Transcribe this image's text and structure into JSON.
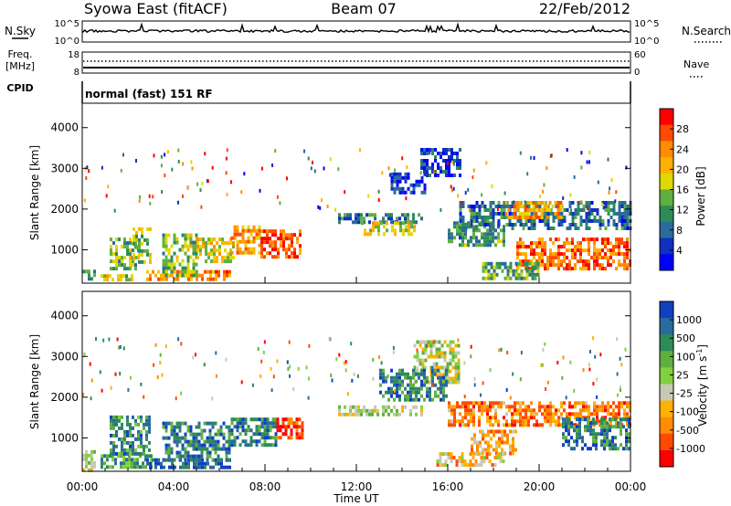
{
  "header": {
    "station": "Syowa East (fitACF)",
    "beam": "Beam 07",
    "date": "22/Feb/2012"
  },
  "noise_panel": {
    "left_label": "N.Sky",
    "left_ticks": [
      "10^5",
      "10^0"
    ],
    "right_label": "N.Search",
    "right_ticks": [
      "10^5",
      "10^0"
    ]
  },
  "freq_panel": {
    "left_label": "Freq.",
    "left_unit": "[MHz]",
    "left_ticks": [
      "18",
      "8"
    ],
    "right_label": "Nave",
    "right_ticks": [
      "60",
      "0"
    ]
  },
  "cpid_panel": {
    "label": "CPID",
    "value": "normal (fast) 151 RF"
  },
  "chart_data": [
    {
      "type": "heatmap",
      "parameter": "power",
      "ylabel": "Slant Range [km]",
      "yticks": [
        1000,
        2000,
        3000,
        4000
      ],
      "ylim": [
        180,
        4600
      ],
      "xlim": [
        0,
        24
      ],
      "colorbar": {
        "label": "Power [dB]",
        "ticks": [
          "28",
          "24",
          "20",
          "16",
          "12",
          "8",
          "4"
        ],
        "colors": [
          "#ff0000",
          "#ff4b00",
          "#ff8c00",
          "#ffb000",
          "#e0d800",
          "#60b040",
          "#2e8b57",
          "#2a6a9c",
          "#1030c0",
          "#0000ff"
        ]
      },
      "echo_regions": [
        {
          "t": [
            0.0,
            0.6
          ],
          "r": [
            250,
            600
          ],
          "level": 0.35
        },
        {
          "t": [
            0.8,
            2.2
          ],
          "r": [
            250,
            400
          ],
          "level": 0.55
        },
        {
          "t": [
            1.2,
            2.5
          ],
          "r": [
            500,
            1300
          ],
          "level": 0.45
        },
        {
          "t": [
            2.2,
            3.0
          ],
          "r": [
            700,
            1550
          ],
          "level": 0.5
        },
        {
          "t": [
            2.8,
            6.5
          ],
          "r": [
            250,
            500
          ],
          "level": 0.75
        },
        {
          "t": [
            3.5,
            5.0
          ],
          "r": [
            400,
            1400
          ],
          "level": 0.45
        },
        {
          "t": [
            5.0,
            6.6
          ],
          "r": [
            700,
            1300
          ],
          "level": 0.6
        },
        {
          "t": [
            6.5,
            7.8
          ],
          "r": [
            900,
            1600
          ],
          "level": 0.7
        },
        {
          "t": [
            7.8,
            9.6
          ],
          "r": [
            800,
            1500
          ],
          "level": 0.85
        },
        {
          "t": [
            11.2,
            14.8
          ],
          "r": [
            1650,
            1900
          ],
          "level": 0.3
        },
        {
          "t": [
            12.2,
            14.5
          ],
          "r": [
            1400,
            1700
          ],
          "level": 0.55
        },
        {
          "t": [
            13.5,
            15.0
          ],
          "r": [
            2400,
            2900
          ],
          "level": 0.15
        },
        {
          "t": [
            14.8,
            16.5
          ],
          "r": [
            2800,
            3500
          ],
          "level": 0.15
        },
        {
          "t": [
            16.0,
            18.5
          ],
          "r": [
            1100,
            1700
          ],
          "level": 0.35
        },
        {
          "t": [
            16.5,
            24.0
          ],
          "r": [
            1500,
            2200
          ],
          "level": 0.25
        },
        {
          "t": [
            18.5,
            21.0
          ],
          "r": [
            1800,
            2200
          ],
          "level": 0.7
        },
        {
          "t": [
            19.0,
            24.0
          ],
          "r": [
            550,
            1300
          ],
          "level": 0.8
        },
        {
          "t": [
            17.5,
            20.0
          ],
          "r": [
            300,
            700
          ],
          "level": 0.4
        }
      ]
    },
    {
      "type": "heatmap",
      "parameter": "velocity",
      "ylabel": "Slant Range [km]",
      "yticks": [
        1000,
        2000,
        3000,
        4000
      ],
      "ylim": [
        180,
        4600
      ],
      "xlim": [
        0,
        24
      ],
      "xticks": [
        "00:00",
        "04:00",
        "08:00",
        "12:00",
        "16:00",
        "20:00",
        "00:00"
      ],
      "xlabel": "Time UT",
      "colorbar": {
        "label": "Velocity [m s",
        "label_exp": "-1",
        "label_end": "]",
        "ticks": [
          "1000",
          "500",
          "100",
          "25",
          "-25",
          "-100",
          "-500",
          "-1000"
        ],
        "colors": [
          "#1040c0",
          "#2a6a9c",
          "#2e8b57",
          "#60b040",
          "#80d040",
          "#c8c8b4",
          "#ffb000",
          "#ff8c00",
          "#ff4b00",
          "#ff0000"
        ]
      },
      "echo_regions": [
        {
          "t": [
            0.0,
            0.6
          ],
          "r": [
            250,
            700
          ],
          "level": 0.55
        },
        {
          "t": [
            0.8,
            3.0
          ],
          "r": [
            250,
            600
          ],
          "level": 0.7
        },
        {
          "t": [
            1.2,
            3.0
          ],
          "r": [
            600,
            1550
          ],
          "level": 0.75
        },
        {
          "t": [
            2.8,
            6.5
          ],
          "r": [
            250,
            500
          ],
          "level": 0.9
        },
        {
          "t": [
            3.5,
            6.5
          ],
          "r": [
            500,
            1400
          ],
          "level": 0.8
        },
        {
          "t": [
            6.5,
            8.5
          ],
          "r": [
            800,
            1500
          ],
          "level": 0.78
        },
        {
          "t": [
            8.5,
            9.6
          ],
          "r": [
            1000,
            1500
          ],
          "level": 0.1
        },
        {
          "t": [
            11.2,
            14.8
          ],
          "r": [
            1550,
            1800
          ],
          "level": 0.5
        },
        {
          "t": [
            14.5,
            16.5
          ],
          "r": [
            2400,
            3400
          ],
          "level": 0.5
        },
        {
          "t": [
            13.0,
            16.0
          ],
          "r": [
            1900,
            2700
          ],
          "level": 0.78
        },
        {
          "t": [
            16.0,
            24.0
          ],
          "r": [
            1300,
            1900
          ],
          "level": 0.25
        },
        {
          "t": [
            17.0,
            19.0
          ],
          "r": [
            600,
            1200
          ],
          "level": 0.3
        },
        {
          "t": [
            15.5,
            18.5
          ],
          "r": [
            350,
            650
          ],
          "level": 0.35
        },
        {
          "t": [
            21.0,
            24.0
          ],
          "r": [
            700,
            1500
          ],
          "level": 0.8
        }
      ]
    }
  ]
}
